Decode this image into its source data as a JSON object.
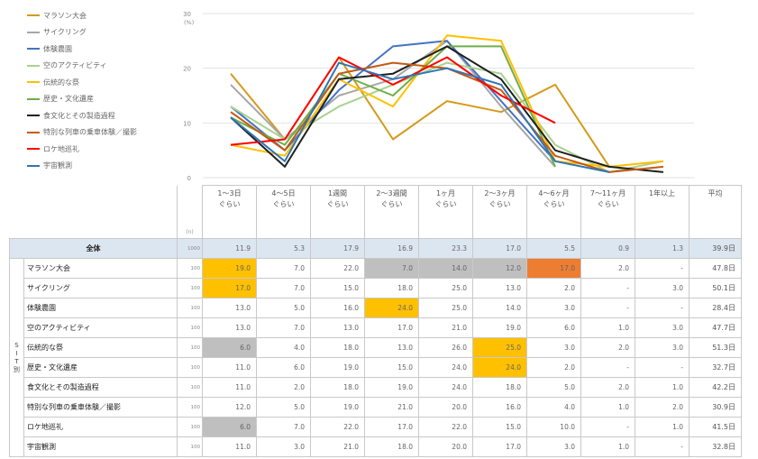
{
  "chart_data": {
    "type": "line",
    "ylim": [
      0,
      30
    ],
    "yticks": [
      0,
      10,
      20,
      30
    ],
    "yunit": "(%)",
    "categories": [
      "1～3日\nぐらい",
      "4～5日\nぐらい",
      "1週間\nぐらい",
      "2～3週間\nぐらい",
      "1ヶ月\nぐらい",
      "2～3ヶ月\nぐらい",
      "4～6ヶ月\nぐらい",
      "7～11ヶ月\nぐらい",
      "1年以上"
    ],
    "avg_header": "平均",
    "n_header": "(n)",
    "series": [
      {
        "name": "マラソン大会",
        "color": "#d49a1a",
        "values": [
          19,
          7,
          22,
          7,
          14,
          12,
          17,
          2,
          null
        ]
      },
      {
        "name": "サイクリング",
        "color": "#a6a6a6",
        "values": [
          17,
          7,
          15,
          18,
          25,
          13,
          2,
          null,
          3
        ]
      },
      {
        "name": "体験農園",
        "color": "#4472c4",
        "values": [
          13,
          5,
          16,
          24,
          25,
          14,
          3,
          null,
          null
        ]
      },
      {
        "name": "空のアクティビティ",
        "color": "#a9d18e",
        "values": [
          13,
          7,
          13,
          17,
          21,
          19,
          6,
          1,
          3
        ]
      },
      {
        "name": "伝統的な祭",
        "color": "#ffc000",
        "values": [
          6,
          4,
          18,
          13,
          26,
          25,
          3,
          2,
          3
        ]
      },
      {
        "name": "歴史・文化遺産",
        "color": "#70ad47",
        "values": [
          11,
          6,
          19,
          15,
          24,
          24,
          2,
          null,
          null
        ]
      },
      {
        "name": "食文化とその製造過程",
        "color": "#1f1f1f",
        "values": [
          11,
          2,
          18,
          19,
          24,
          18,
          5,
          2,
          1
        ]
      },
      {
        "name": "特別な列車の乗車体験／撮影",
        "color": "#c55a11",
        "values": [
          12,
          5,
          19,
          21,
          20,
          16,
          4,
          1,
          2
        ]
      },
      {
        "name": "ロケ地巡礼",
        "color": "#ff0000",
        "values": [
          6,
          7,
          22,
          17,
          22,
          15,
          10,
          null,
          1
        ]
      },
      {
        "name": "宇宙観測",
        "color": "#2e75b6",
        "values": [
          11,
          3,
          21,
          18,
          20,
          17,
          3,
          1,
          null
        ]
      }
    ],
    "table": {
      "group_label": "S I T 別",
      "total": {
        "label": "全体",
        "n": "1000",
        "values": [
          "11.9",
          "5.3",
          "17.9",
          "16.9",
          "23.3",
          "17.0",
          "5.5",
          "0.9",
          "1.3"
        ],
        "avg": "39.9日"
      },
      "rows": [
        {
          "label": "マラソン大会",
          "n": "100",
          "values": [
            "19.0",
            "7.0",
            "22.0",
            "7.0",
            "14.0",
            "12.0",
            "17.0",
            "2.0",
            "-"
          ],
          "avg": "47.8日",
          "hl": [
            "y",
            "",
            "",
            "g",
            "g",
            "g",
            "o",
            "",
            ""
          ]
        },
        {
          "label": "サイクリング",
          "n": "100",
          "values": [
            "17.0",
            "7.0",
            "15.0",
            "18.0",
            "25.0",
            "13.0",
            "2.0",
            "-",
            "3.0"
          ],
          "avg": "50.1日",
          "hl": [
            "y",
            "",
            "",
            "",
            "",
            "",
            "",
            "",
            ""
          ]
        },
        {
          "label": "体験農園",
          "n": "100",
          "values": [
            "13.0",
            "5.0",
            "16.0",
            "24.0",
            "25.0",
            "14.0",
            "3.0",
            "-",
            "-"
          ],
          "avg": "28.4日",
          "hl": [
            "",
            "",
            "",
            "y",
            "",
            "",
            "",
            "",
            ""
          ]
        },
        {
          "label": "空のアクティビティ",
          "n": "100",
          "values": [
            "13.0",
            "7.0",
            "13.0",
            "17.0",
            "21.0",
            "19.0",
            "6.0",
            "1.0",
            "3.0"
          ],
          "avg": "47.7日",
          "hl": [
            "",
            "",
            "",
            "",
            "",
            "",
            "",
            "",
            ""
          ]
        },
        {
          "label": "伝統的な祭",
          "n": "100",
          "values": [
            "6.0",
            "4.0",
            "18.0",
            "13.0",
            "26.0",
            "25.0",
            "3.0",
            "2.0",
            "3.0"
          ],
          "avg": "51.3日",
          "hl": [
            "g",
            "",
            "",
            "",
            "",
            "y",
            "",
            "",
            ""
          ]
        },
        {
          "label": "歴史・文化遺産",
          "n": "100",
          "values": [
            "11.0",
            "6.0",
            "19.0",
            "15.0",
            "24.0",
            "24.0",
            "2.0",
            "-",
            "-"
          ],
          "avg": "32.7日",
          "hl": [
            "",
            "",
            "",
            "",
            "",
            "y",
            "",
            "",
            ""
          ]
        },
        {
          "label": "食文化とその製造過程",
          "n": "100",
          "values": [
            "11.0",
            "2.0",
            "18.0",
            "19.0",
            "24.0",
            "18.0",
            "5.0",
            "2.0",
            "1.0"
          ],
          "avg": "42.2日",
          "hl": [
            "",
            "",
            "",
            "",
            "",
            "",
            "",
            "",
            ""
          ]
        },
        {
          "label": "特別な列車の乗車体験／撮影",
          "n": "100",
          "values": [
            "12.0",
            "5.0",
            "19.0",
            "21.0",
            "20.0",
            "16.0",
            "4.0",
            "1.0",
            "2.0"
          ],
          "avg": "30.9日",
          "hl": [
            "",
            "",
            "",
            "",
            "",
            "",
            "",
            "",
            ""
          ]
        },
        {
          "label": "ロケ地巡礼",
          "n": "100",
          "values": [
            "6.0",
            "7.0",
            "22.0",
            "17.0",
            "22.0",
            "15.0",
            "10.0",
            "-",
            "1.0"
          ],
          "avg": "41.5日",
          "hl": [
            "g",
            "",
            "",
            "",
            "",
            "",
            "",
            "",
            ""
          ]
        },
        {
          "label": "宇宙観測",
          "n": "100",
          "values": [
            "11.0",
            "3.0",
            "21.0",
            "18.0",
            "20.0",
            "17.0",
            "3.0",
            "1.0",
            "-"
          ],
          "avg": "32.8日",
          "hl": [
            "",
            "",
            "",
            "",
            "",
            "",
            "",
            "",
            ""
          ]
        }
      ]
    }
  }
}
